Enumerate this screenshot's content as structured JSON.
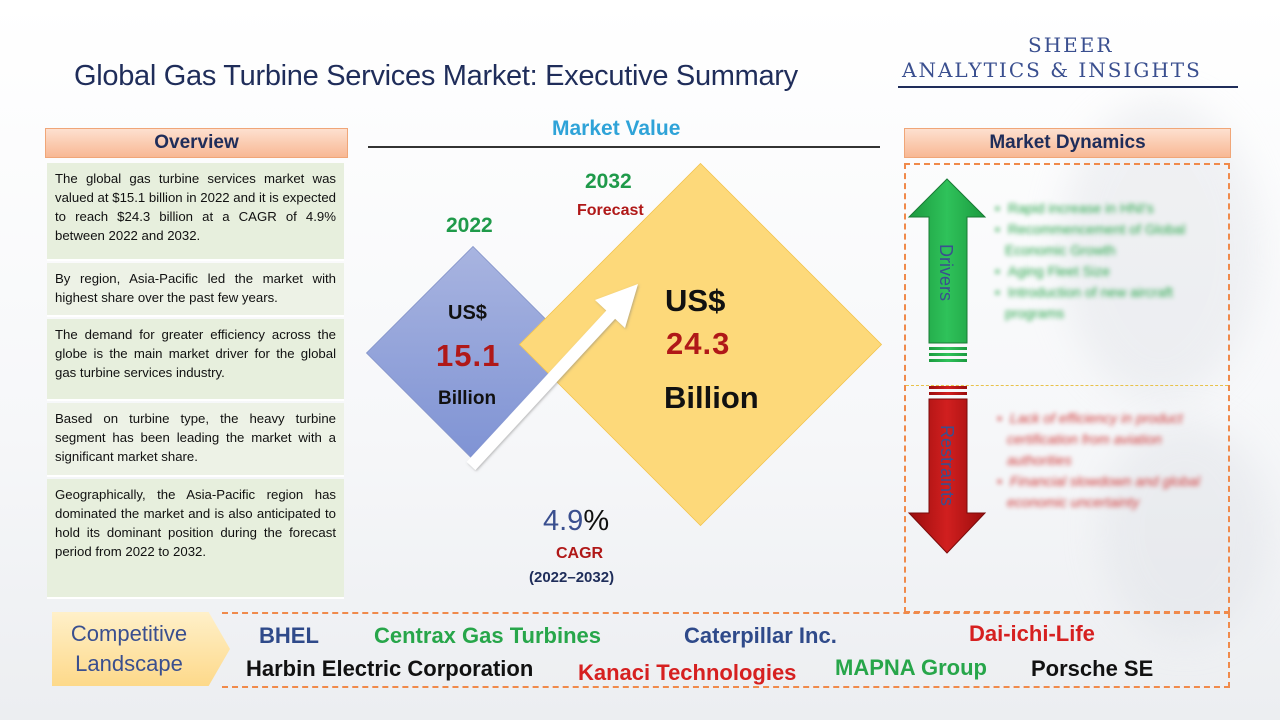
{
  "title": "Global Gas Turbine Services Market: Executive Summary",
  "brand": {
    "line1": "SHEER",
    "line2": "ANALYTICS & INSIGHTS"
  },
  "overview": {
    "header": "Overview",
    "items": [
      "The global gas turbine services market was valued at $15.1 billion in 2022 and it is expected to reach $24.3 billion at a CAGR of 4.9% between 2022 and 2032.",
      "By region, Asia-Pacific led the market with highest share over the past few years.",
      "The demand for greater efficiency across the globe is the main market driver for the global gas turbine services industry.",
      "Based on turbine type, the heavy turbine segment has been leading the market with a significant market share.",
      "Geographically, the Asia-Pacific region has dominated the market and is also anticipated to hold its dominant position during the forecast period from 2022 to 2032."
    ]
  },
  "market_value": {
    "header": "Market Value",
    "base": {
      "year": "2022",
      "currency": "US$",
      "value": "15.1",
      "unit": "Billion"
    },
    "forecast": {
      "year": "2032",
      "label": "Forecast",
      "currency": "US$",
      "value": "24.3",
      "unit": "Billion"
    },
    "cagr": {
      "value": "4.9",
      "symbol": "%",
      "label": "CAGR",
      "range": "(2022–2032)"
    },
    "colors": {
      "small_diamond": "#8a9bd8",
      "big_diamond": "#fdd97a",
      "value_red": "#b01818",
      "year_green": "#1f9a4a"
    }
  },
  "market_dynamics": {
    "header": "Market Dynamics",
    "drivers": {
      "label": "Drivers",
      "items": [
        "Rapid increase in HNI's",
        "Recommencement of Global Economic Growth",
        "Aging Fleet Size",
        "Introduction of new aircraft programs"
      ]
    },
    "restraints": {
      "label": "Restraints",
      "items": [
        "Lack of efficiency in product certification from aviation authorities",
        "Financial slowdown and global economic uncertainty"
      ]
    }
  },
  "competitive_landscape": {
    "label_line1": "Competitive",
    "label_line2": "Landscape",
    "companies": [
      {
        "name": "BHEL",
        "color": "#2f4a8a"
      },
      {
        "name": "Centrax Gas Turbines",
        "color": "#27a64a"
      },
      {
        "name": "Caterpillar Inc.",
        "color": "#2f4a8a"
      },
      {
        "name": "Dai-ichi-Life",
        "color": "#d62020"
      },
      {
        "name": "Harbin Electric Corporation",
        "color": "#111111"
      },
      {
        "name": "Kanaci Technologies",
        "color": "#d62020"
      },
      {
        "name": "MAPNA Group",
        "color": "#27a64a"
      },
      {
        "name": "Porsche SE",
        "color": "#111111"
      }
    ]
  }
}
